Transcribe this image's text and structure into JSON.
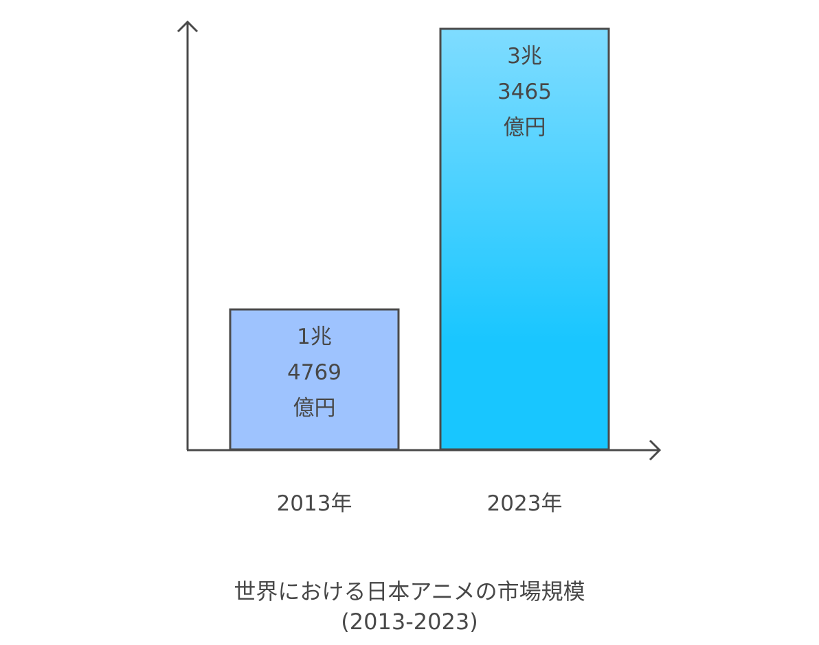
{
  "chart_data": {
    "type": "bar",
    "title": "世界における日本アニメの市場規模",
    "subtitle": "(2013-2023)",
    "categories": [
      "2013年",
      "2023年"
    ],
    "values": [
      14769,
      33465
    ],
    "unit": "億円",
    "data_labels": [
      [
        "1兆",
        "4769",
        "億円"
      ],
      [
        "3兆",
        "3465",
        "億円"
      ]
    ],
    "xlabel": "",
    "ylabel": "",
    "grid": false,
    "colors": {
      "bar_2013": "#9ec3fe",
      "bar_2023_top": "#7fdcff",
      "bar_2023_bottom": "#18c6ff",
      "stroke": "#4a4a4a"
    }
  }
}
